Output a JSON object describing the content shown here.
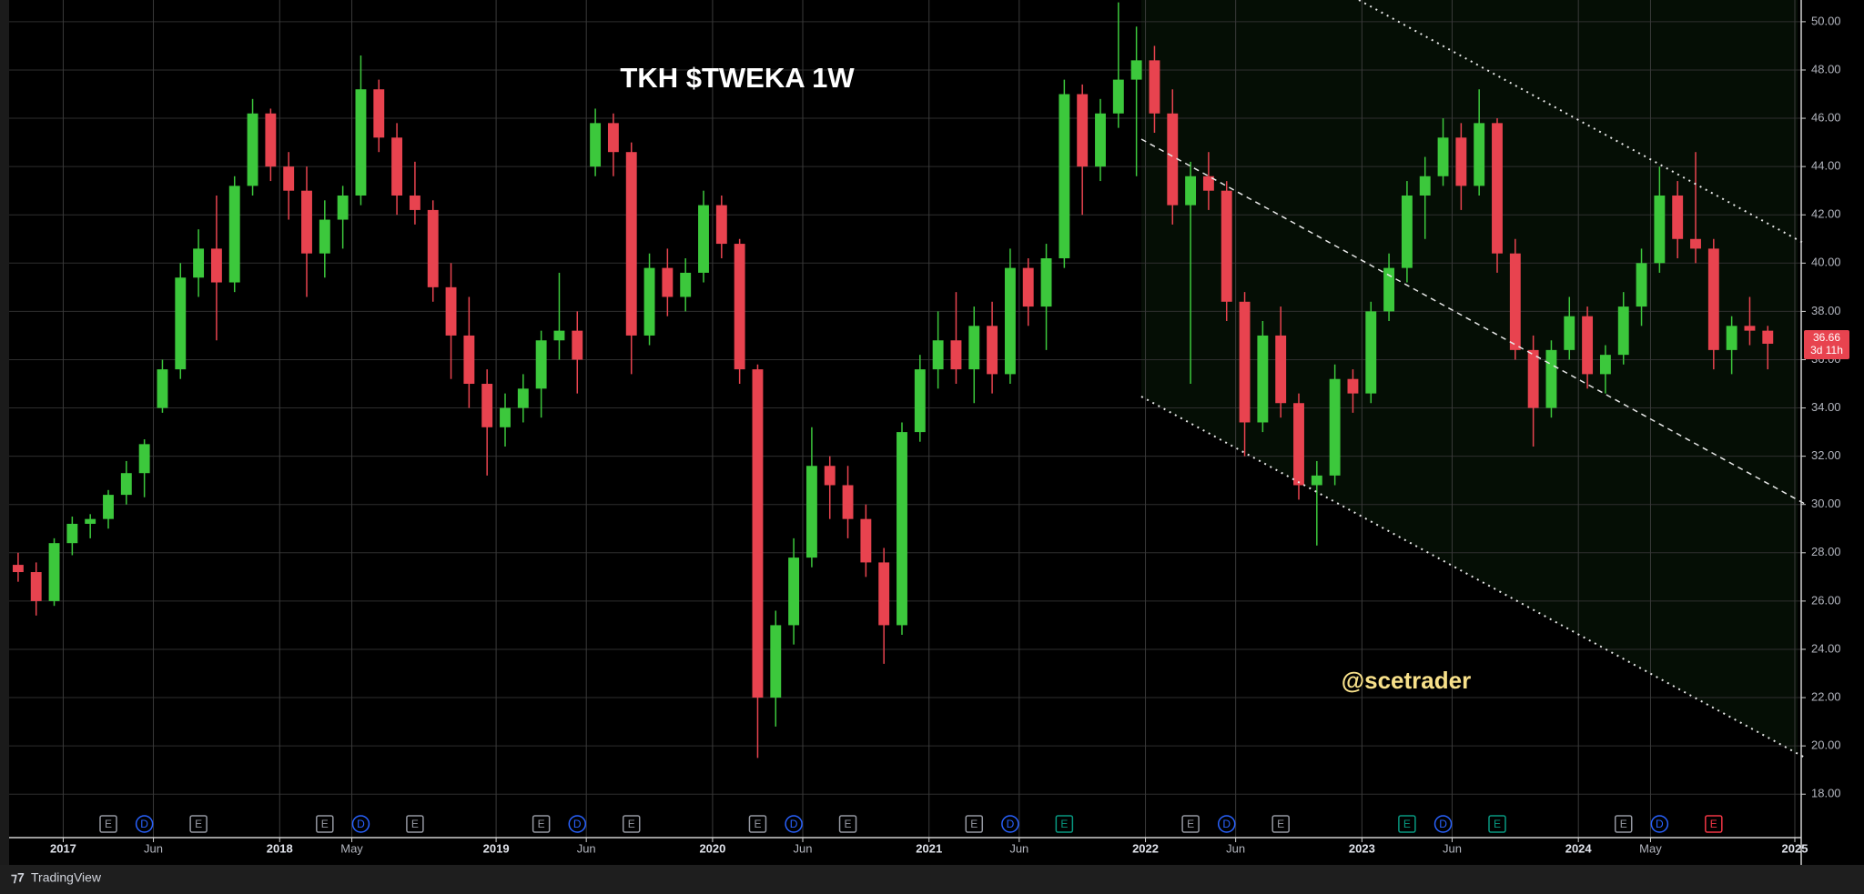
{
  "chart_data": {
    "type": "candlestick",
    "title": "TKH $TWEKA 1W",
    "watermark": "@scetrader",
    "countdown": "3d 11h",
    "up_color": "#3cc83c",
    "down_color": "#e8434f",
    "x": [
      "2016-10",
      "2016-11",
      "2016-12",
      "2017-01",
      "2017-02",
      "2017-03",
      "2017-04",
      "2017-05",
      "2017-06",
      "2017-07",
      "2017-08",
      "2017-09",
      "2017-10",
      "2017-11",
      "2017-12",
      "2018-01",
      "2018-02",
      "2018-03",
      "2018-04",
      "2018-05",
      "2018-06",
      "2018-07",
      "2018-08",
      "2018-09",
      "2018-10",
      "2018-11",
      "2018-12",
      "2019-01",
      "2019-02",
      "2019-03",
      "2019-04",
      "2019-05",
      "2019-06",
      "2019-07",
      "2019-08",
      "2019-09",
      "2019-10",
      "2019-11",
      "2019-12",
      "2020-01",
      "2020-02",
      "2020-03",
      "2020-04",
      "2020-05",
      "2020-06",
      "2020-07",
      "2020-08",
      "2020-09",
      "2020-10",
      "2020-11",
      "2020-12",
      "2021-01",
      "2021-02",
      "2021-03",
      "2021-04",
      "2021-05",
      "2021-06",
      "2021-07",
      "2021-08",
      "2021-09",
      "2021-10",
      "2021-11",
      "2021-12",
      "2022-01",
      "2022-02",
      "2022-03",
      "2022-04",
      "2022-05",
      "2022-06",
      "2022-07",
      "2022-08",
      "2022-09",
      "2022-10",
      "2022-11",
      "2022-12",
      "2023-01",
      "2023-02",
      "2023-03",
      "2023-04",
      "2023-05",
      "2023-06",
      "2023-07",
      "2023-08",
      "2023-09",
      "2023-10",
      "2023-11",
      "2023-12",
      "2024-01",
      "2024-02",
      "2024-03",
      "2024-04",
      "2024-05",
      "2024-06",
      "2024-07",
      "2024-08",
      "2024-09",
      "2024-10",
      "2024-11"
    ],
    "open": [
      27.5,
      27.2,
      26.0,
      28.4,
      29.2,
      29.4,
      30.4,
      31.3,
      34.0,
      35.6,
      39.4,
      40.6,
      39.2,
      43.2,
      46.2,
      44.0,
      43.0,
      40.4,
      41.8,
      42.8,
      47.2,
      45.2,
      42.8,
      42.2,
      39.0,
      37.0,
      35.0,
      33.2,
      34.0,
      34.8,
      36.8,
      37.2,
      44.0,
      45.8,
      44.6,
      37.0,
      39.8,
      38.6,
      39.6,
      42.4,
      40.8,
      35.6,
      22.0,
      25.0,
      27.8,
      31.6,
      30.8,
      29.4,
      27.6,
      25.0,
      33.0,
      35.6,
      36.8,
      35.6,
      37.4,
      35.4,
      39.8,
      38.2,
      40.2,
      47.0,
      44.0,
      46.2,
      47.6,
      48.4,
      46.2,
      42.4,
      43.6,
      43.0,
      38.4,
      33.4,
      37.0,
      34.2,
      30.8,
      31.2,
      35.2,
      34.6,
      38.0,
      39.8,
      42.8,
      43.6,
      45.2,
      43.2,
      45.8,
      40.4,
      36.4,
      34.0,
      36.4,
      37.8,
      35.4,
      36.2,
      38.2,
      40.0,
      42.8,
      41.0,
      40.6,
      36.4,
      37.4,
      37.2
    ],
    "high": [
      28.0,
      27.6,
      28.6,
      29.5,
      29.6,
      30.6,
      31.8,
      32.7,
      36.0,
      40.0,
      41.4,
      42.8,
      43.6,
      46.8,
      46.4,
      44.6,
      44.0,
      42.6,
      43.2,
      48.6,
      47.6,
      45.8,
      44.2,
      42.6,
      40.0,
      38.6,
      35.6,
      34.6,
      35.4,
      37.2,
      39.6,
      38.0,
      46.4,
      46.2,
      45.0,
      40.4,
      40.6,
      40.2,
      43.0,
      42.8,
      41.0,
      35.8,
      25.6,
      28.6,
      33.2,
      32.0,
      31.6,
      30.0,
      28.2,
      33.4,
      36.2,
      38.0,
      38.8,
      38.2,
      38.4,
      40.6,
      40.2,
      40.8,
      47.6,
      47.4,
      46.8,
      50.8,
      49.8,
      49.0,
      47.2,
      44.2,
      44.6,
      43.4,
      38.8,
      37.6,
      38.2,
      34.6,
      31.8,
      35.8,
      35.6,
      38.4,
      40.4,
      43.4,
      44.4,
      46.0,
      45.8,
      47.2,
      46.0,
      41.0,
      37.0,
      36.8,
      38.6,
      38.2,
      36.6,
      38.8,
      40.6,
      44.0,
      43.4,
      44.6,
      41.0,
      37.8,
      38.6,
      37.4
    ],
    "low": [
      26.8,
      25.4,
      25.8,
      27.9,
      28.6,
      29.0,
      30.0,
      30.3,
      33.8,
      35.2,
      38.6,
      36.8,
      38.8,
      42.8,
      43.4,
      41.8,
      38.6,
      39.4,
      40.6,
      42.4,
      44.6,
      42.0,
      41.6,
      38.4,
      35.2,
      34.0,
      31.2,
      32.4,
      33.4,
      33.6,
      36.0,
      34.6,
      43.6,
      43.6,
      35.4,
      36.6,
      37.8,
      38.0,
      39.2,
      40.2,
      35.0,
      19.5,
      20.8,
      24.2,
      27.4,
      29.4,
      28.6,
      27.0,
      23.4,
      24.6,
      32.6,
      34.8,
      35.0,
      34.2,
      34.6,
      35.0,
      37.4,
      36.4,
      39.8,
      42.0,
      43.4,
      45.6,
      43.6,
      45.4,
      41.6,
      35.0,
      42.2,
      37.6,
      32.0,
      33.0,
      33.6,
      30.2,
      28.3,
      30.8,
      33.8,
      34.2,
      37.6,
      39.2,
      41.0,
      43.2,
      42.2,
      42.8,
      39.6,
      36.0,
      32.4,
      33.6,
      36.0,
      34.8,
      34.6,
      35.8,
      37.4,
      39.6,
      40.2,
      40.0,
      35.6,
      35.4,
      36.6,
      35.6
    ],
    "close": [
      27.2,
      26.0,
      28.4,
      29.2,
      29.4,
      30.4,
      31.3,
      32.5,
      35.6,
      39.4,
      40.6,
      39.2,
      43.2,
      46.2,
      44.0,
      43.0,
      40.4,
      41.8,
      42.8,
      47.2,
      45.2,
      42.8,
      42.2,
      39.0,
      37.0,
      35.0,
      33.2,
      34.0,
      34.8,
      36.8,
      37.2,
      36.0,
      45.8,
      44.6,
      37.0,
      39.8,
      38.6,
      39.6,
      42.4,
      40.8,
      35.6,
      22.0,
      25.0,
      27.8,
      31.6,
      30.8,
      29.4,
      27.6,
      25.0,
      33.0,
      35.6,
      36.8,
      35.6,
      37.4,
      35.4,
      39.8,
      38.2,
      40.2,
      47.0,
      44.0,
      46.2,
      47.6,
      48.4,
      46.2,
      42.4,
      43.6,
      43.0,
      38.4,
      33.4,
      37.0,
      34.2,
      30.8,
      31.2,
      35.2,
      34.6,
      38.0,
      39.8,
      42.8,
      43.6,
      45.2,
      43.2,
      45.8,
      40.4,
      36.4,
      34.0,
      36.4,
      37.8,
      35.4,
      36.2,
      38.2,
      40.0,
      42.8,
      41.0,
      40.6,
      36.4,
      37.4,
      37.2,
      36.66
    ],
    "xlim": [
      "2016-10",
      "2025-01"
    ],
    "xticks": [
      {
        "value": "2017-01",
        "label": "2017"
      },
      {
        "value": "2017-06",
        "label": "Jun"
      },
      {
        "value": "2018-01",
        "label": "2018"
      },
      {
        "value": "2018-05",
        "label": "May"
      },
      {
        "value": "2019-01",
        "label": "2019"
      },
      {
        "value": "2019-06",
        "label": "Jun"
      },
      {
        "value": "2020-01",
        "label": "2020"
      },
      {
        "value": "2020-06",
        "label": "Jun"
      },
      {
        "value": "2021-01",
        "label": "2021"
      },
      {
        "value": "2021-06",
        "label": "Jun"
      },
      {
        "value": "2022-01",
        "label": "2022"
      },
      {
        "value": "2022-06",
        "label": "Jun"
      },
      {
        "value": "2023-01",
        "label": "2023"
      },
      {
        "value": "2023-06",
        "label": "Jun"
      },
      {
        "value": "2024-01",
        "label": "2024"
      },
      {
        "value": "2024-05",
        "label": "May"
      },
      {
        "value": "2025-01",
        "label": "2025"
      }
    ],
    "ylim": [
      16.2,
      50.9
    ],
    "yticks": [
      {
        "value": 18,
        "label": "18.00"
      },
      {
        "value": 20,
        "label": "20.00"
      },
      {
        "value": 22,
        "label": "22.00"
      },
      {
        "value": 24,
        "label": "24.00"
      },
      {
        "value": 26,
        "label": "26.00"
      },
      {
        "value": 28,
        "label": "28.00"
      },
      {
        "value": 30,
        "label": "30.00"
      },
      {
        "value": 32,
        "label": "32.00"
      },
      {
        "value": 34,
        "label": "34.00"
      },
      {
        "value": 36,
        "label": "36.00"
      },
      {
        "value": 38,
        "label": "38.00"
      },
      {
        "value": 40,
        "label": "40.00"
      },
      {
        "value": 42,
        "label": "42.00"
      },
      {
        "value": 44,
        "label": "44.00"
      },
      {
        "value": 46,
        "label": "46.00"
      },
      {
        "value": 48,
        "label": "48.00"
      },
      {
        "value": 50,
        "label": "50.00"
      }
    ],
    "grid": true,
    "events": [
      {
        "x": "2017-03",
        "label": "E",
        "color": "#9598a1"
      },
      {
        "x": "2017-05",
        "label": "D",
        "color": "#2962ff"
      },
      {
        "x": "2017-08",
        "label": "E",
        "color": "#9598a1"
      },
      {
        "x": "2018-03",
        "label": "E",
        "color": "#9598a1"
      },
      {
        "x": "2018-05",
        "label": "D",
        "color": "#2962ff"
      },
      {
        "x": "2018-08",
        "label": "E",
        "color": "#9598a1"
      },
      {
        "x": "2019-03",
        "label": "E",
        "color": "#9598a1"
      },
      {
        "x": "2019-05",
        "label": "D",
        "color": "#2962ff"
      },
      {
        "x": "2019-08",
        "label": "E",
        "color": "#9598a1"
      },
      {
        "x": "2020-03",
        "label": "E",
        "color": "#9598a1"
      },
      {
        "x": "2020-05",
        "label": "D",
        "color": "#2962ff"
      },
      {
        "x": "2020-08",
        "label": "E",
        "color": "#9598a1"
      },
      {
        "x": "2021-03",
        "label": "E",
        "color": "#9598a1"
      },
      {
        "x": "2021-05",
        "label": "D",
        "color": "#2962ff"
      },
      {
        "x": "2021-08",
        "label": "E",
        "color": "#089981"
      },
      {
        "x": "2022-03",
        "label": "E",
        "color": "#9598a1"
      },
      {
        "x": "2022-05",
        "label": "D",
        "color": "#2962ff"
      },
      {
        "x": "2022-08",
        "label": "E",
        "color": "#9598a1"
      },
      {
        "x": "2023-03",
        "label": "E",
        "color": "#089981"
      },
      {
        "x": "2023-05",
        "label": "D",
        "color": "#2962ff"
      },
      {
        "x": "2023-08",
        "label": "E",
        "color": "#089981"
      },
      {
        "x": "2024-03",
        "label": "E",
        "color": "#9598a1"
      },
      {
        "x": "2024-05",
        "label": "D",
        "color": "#2962ff"
      },
      {
        "x": "2024-08",
        "label": "E",
        "color": "#f23645"
      }
    ]
  },
  "brand": "TradingView"
}
